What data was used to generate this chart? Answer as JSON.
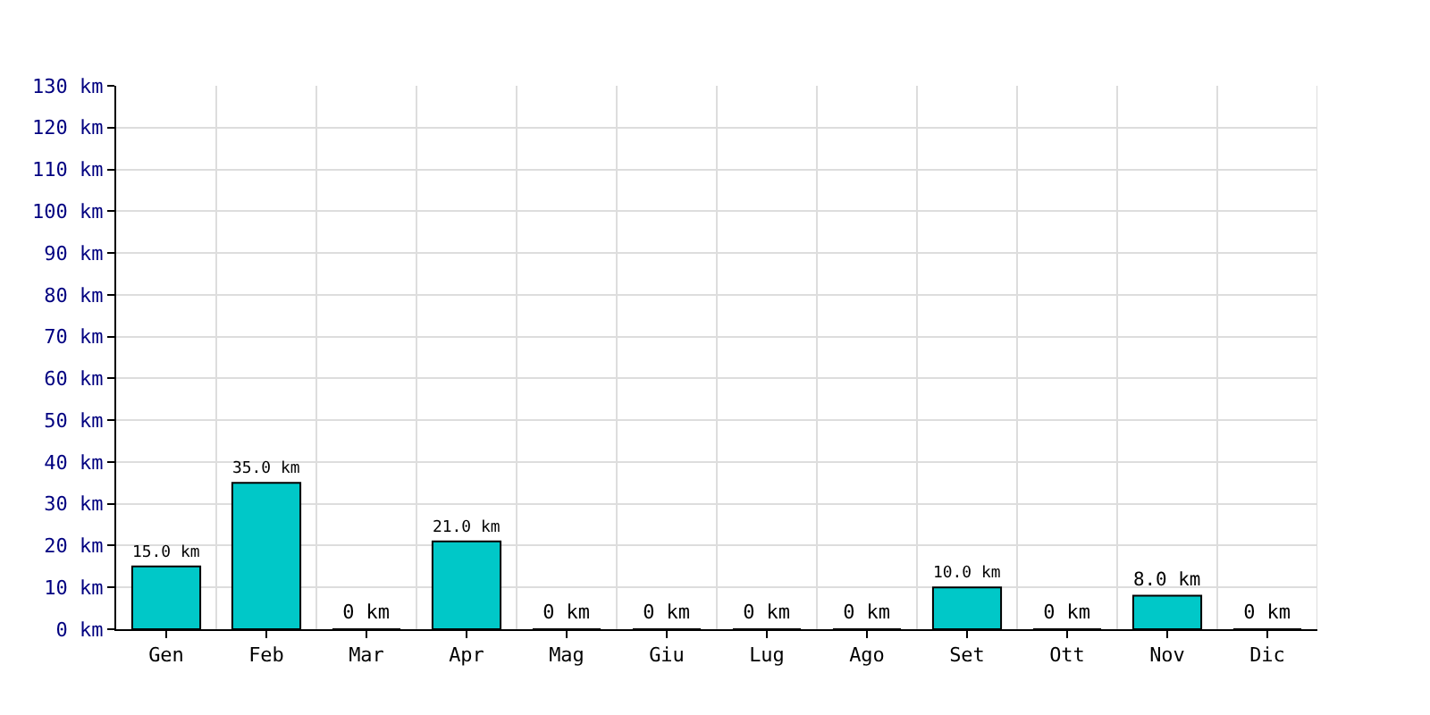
{
  "chart_data": {
    "type": "bar",
    "categories": [
      "Gen",
      "Feb",
      "Mar",
      "Apr",
      "Mag",
      "Giu",
      "Lug",
      "Ago",
      "Set",
      "Ott",
      "Nov",
      "Dic"
    ],
    "values": [
      15,
      35,
      0,
      21,
      0,
      0,
      0,
      0,
      10,
      0,
      8,
      0
    ],
    "value_labels": [
      "15.0 km",
      "35.0 km",
      "0 km",
      "21.0 km",
      "0 km",
      "0 km",
      "0 km",
      "0 km",
      "10.0 km",
      "0 km",
      "8.0 km",
      "0 km"
    ],
    "color": "#00c8c8",
    "ylim": [
      0,
      130
    ],
    "yticks": [
      {
        "value": 0,
        "label": "0 km"
      },
      {
        "value": 10,
        "label": "10 km"
      },
      {
        "value": 20,
        "label": "20 km"
      },
      {
        "value": 30,
        "label": "30 km"
      },
      {
        "value": 40,
        "label": "40 km"
      },
      {
        "value": 50,
        "label": "50 km"
      },
      {
        "value": 60,
        "label": "60 km"
      },
      {
        "value": 70,
        "label": "70 km"
      },
      {
        "value": 80,
        "label": "80 km"
      },
      {
        "value": 90,
        "label": "90 km"
      },
      {
        "value": 100,
        "label": "100 km"
      },
      {
        "value": 110,
        "label": "110 km"
      },
      {
        "value": 120,
        "label": "120 km"
      },
      {
        "value": 130,
        "label": "130 km"
      }
    ],
    "grid": true
  }
}
